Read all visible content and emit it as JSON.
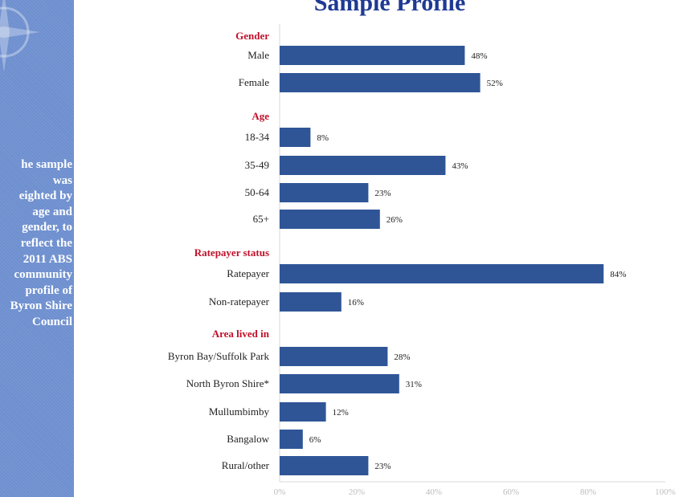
{
  "sidebar": {
    "note": "he sample\nwas\neighted by\nage and\ngender, to\nreflect the\n2011 ABS\ncommunity\nprofile of\nByron Shire\nCouncil"
  },
  "title": "Sample Profile",
  "colors": {
    "bar": "#2f5597",
    "section": "#c0102a",
    "title": "#1f3a93",
    "sidebar": "#6e8fcf"
  },
  "chart_data": {
    "type": "bar",
    "orientation": "horizontal",
    "title": "Sample Profile",
    "xlim": [
      0,
      100
    ],
    "x_ticks": [
      "0%",
      "20%",
      "40%",
      "60%",
      "80%",
      "100%"
    ],
    "value_suffix": "%",
    "grid": false,
    "sections": [
      {
        "name": "Gender",
        "items": [
          {
            "label": "Male",
            "value": 48
          },
          {
            "label": "Female",
            "value": 52
          }
        ]
      },
      {
        "name": "Age",
        "items": [
          {
            "label": "18-34",
            "value": 8
          },
          {
            "label": "35-49",
            "value": 43
          },
          {
            "label": "50-64",
            "value": 23
          },
          {
            "label": "65+",
            "value": 26
          }
        ]
      },
      {
        "name": "Ratepayer status",
        "items": [
          {
            "label": "Ratepayer",
            "value": 84
          },
          {
            "label": "Non-ratepayer",
            "value": 16
          }
        ]
      },
      {
        "name": "Area lived in",
        "items": [
          {
            "label": "Byron Bay/Suffolk Park",
            "value": 28
          },
          {
            "label": "North Byron Shire*",
            "value": 31
          },
          {
            "label": "Mullumbimby",
            "value": 12
          },
          {
            "label": "Bangalow",
            "value": 6
          },
          {
            "label": "Rural/other",
            "value": 23
          }
        ]
      }
    ]
  }
}
